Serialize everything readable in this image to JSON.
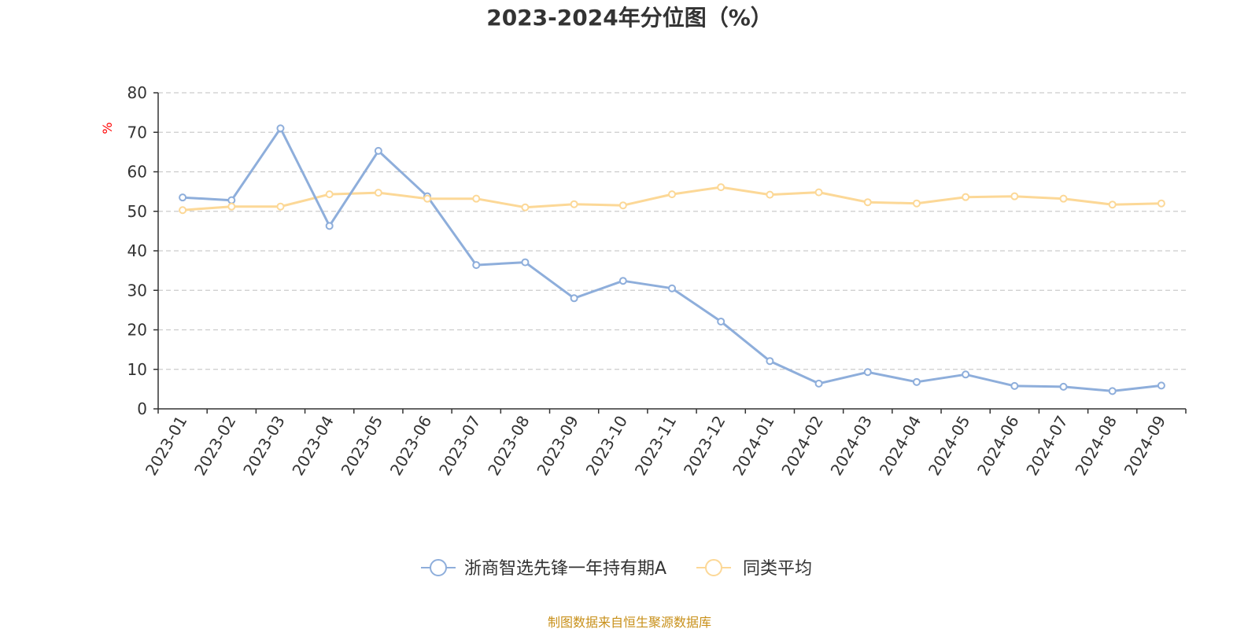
{
  "chart_data": {
    "type": "line",
    "title": "2023-2024年分位图（%）",
    "ylabel": "%",
    "xlabel": "",
    "ylim": [
      0,
      80
    ],
    "yticks": [
      0,
      10,
      20,
      30,
      40,
      50,
      60,
      70,
      80
    ],
    "grid": true,
    "legend_position": "bottom-center",
    "categories": [
      "2023-01",
      "2023-02",
      "2023-03",
      "2023-04",
      "2023-05",
      "2023-06",
      "2023-07",
      "2023-08",
      "2023-09",
      "2023-10",
      "2023-11",
      "2023-12",
      "2024-01",
      "2024-02",
      "2024-03",
      "2024-04",
      "2024-05",
      "2024-06",
      "2024-07",
      "2024-08",
      "2024-09"
    ],
    "series": [
      {
        "name": "浙商智选先锋一年持有期A",
        "color": "#8eaedb",
        "values": [
          53.5,
          52.8,
          71.0,
          46.3,
          65.3,
          53.8,
          36.4,
          37.1,
          28.0,
          32.4,
          30.5,
          22.1,
          12.1,
          6.4,
          9.3,
          6.8,
          8.7,
          5.8,
          5.6,
          4.5,
          5.9
        ]
      },
      {
        "name": "同类平均",
        "color": "#fcd897",
        "values": [
          50.3,
          51.2,
          51.2,
          54.3,
          54.7,
          53.2,
          53.2,
          51.0,
          51.8,
          51.5,
          54.3,
          56.1,
          54.2,
          54.8,
          52.3,
          52.0,
          53.6,
          53.8,
          53.2,
          51.7,
          52.0
        ]
      }
    ]
  },
  "footer": {
    "source": "制图数据来自恒生聚源数据库"
  }
}
